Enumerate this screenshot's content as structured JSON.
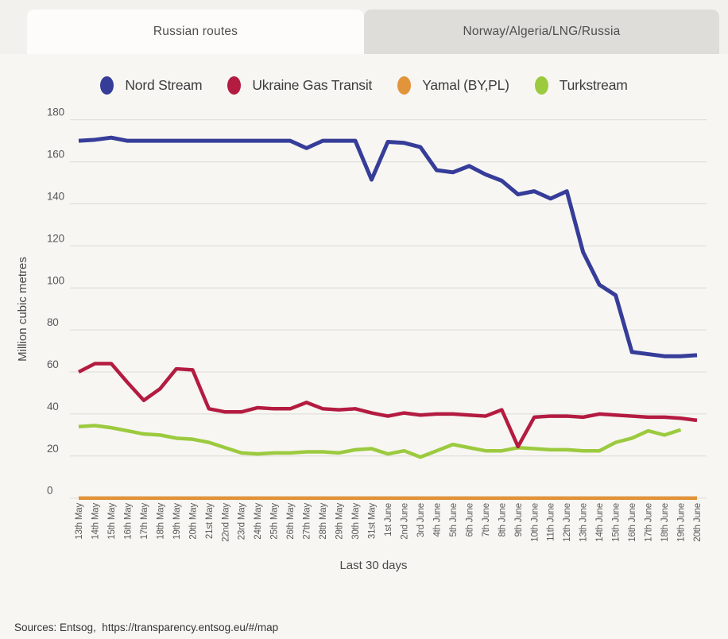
{
  "tabs": [
    {
      "label": "Russian routes",
      "active": true
    },
    {
      "label": "Norway/Algeria/LNG/Russia",
      "active": false
    }
  ],
  "footer": {
    "sources_text": "Sources: Entsog,  https://transparency.entsog.eu/#/map"
  },
  "chart_data": {
    "type": "line",
    "title": "",
    "xlabel": "Last 30 days",
    "ylabel": "Million cubic metres",
    "ylim": [
      0,
      180
    ],
    "ytick_step": 20,
    "grid": true,
    "legend_position": "top",
    "categories": [
      "13th May",
      "14th May",
      "15th May",
      "16th May",
      "17th May",
      "18th May",
      "19th May",
      "20th May",
      "21st May",
      "22nd May",
      "23rd May",
      "24th May",
      "25th May",
      "26th May",
      "27th May",
      "28th May",
      "29th May",
      "30th May",
      "31st May",
      "1st June",
      "2nd June",
      "3rd June",
      "4th June",
      "5th June",
      "6th June",
      "7th June",
      "8th June",
      "9th June",
      "10th June",
      "11th June",
      "12th June",
      "13th June",
      "14th June",
      "15th June",
      "16th June",
      "17th June",
      "18th June",
      "19th June",
      "20th June"
    ],
    "series": [
      {
        "name": "Nord Stream",
        "color": "#363d99",
        "values": [
          170,
          170.5,
          171.5,
          170,
          170,
          170,
          170,
          170,
          170,
          170,
          170,
          170,
          170,
          170,
          166.5,
          170,
          170,
          170,
          151.5,
          169.5,
          169,
          167,
          156,
          155,
          158,
          154,
          151,
          144.5,
          146,
          142.5,
          146,
          117,
          101.5,
          96.5,
          69.5,
          68.5,
          67.5,
          67.5,
          68
        ]
      },
      {
        "name": "Ukraine Gas Transit",
        "color": "#b41b40",
        "values": [
          60,
          64,
          64,
          55,
          46.5,
          52,
          61.5,
          61,
          42.5,
          41,
          41,
          43,
          42.5,
          42.5,
          45.5,
          42.5,
          42,
          42.5,
          40.5,
          39,
          40.5,
          39.5,
          40,
          40,
          39.5,
          39,
          42,
          24.5,
          38.5,
          39,
          39,
          38.5,
          40,
          39.5,
          39,
          38.5,
          38.5,
          38,
          37
        ]
      },
      {
        "name": "Yamal (BY,PL)",
        "color": "#e2943a",
        "values": [
          0,
          0,
          0,
          0,
          0,
          0,
          0,
          0,
          0,
          0,
          0,
          0,
          0,
          0,
          0,
          0,
          0,
          0,
          0,
          0,
          0,
          0,
          0,
          0,
          0,
          0,
          0,
          0,
          0,
          0,
          0,
          0,
          0,
          0,
          0,
          0,
          0,
          0,
          0
        ]
      },
      {
        "name": "Turkstream",
        "color": "#9cca3f",
        "values": [
          34,
          34.5,
          33.5,
          32,
          30.5,
          30,
          28.5,
          28,
          26.5,
          24,
          21.5,
          21,
          21.5,
          21.5,
          22,
          22,
          21.5,
          23,
          23.5,
          21,
          22.5,
          19.5,
          22.5,
          25.5,
          24,
          22.5,
          22.5,
          24,
          23.5,
          23,
          23,
          22.5,
          22.5,
          26.5,
          28.5,
          32,
          30,
          32.5,
          null
        ]
      }
    ]
  }
}
